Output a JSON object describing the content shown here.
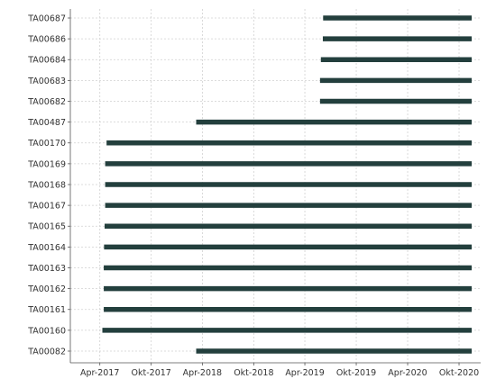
{
  "chart_data": {
    "type": "gantt",
    "title": "",
    "xlabel": "",
    "ylabel": "",
    "x_axis_type": "date",
    "xlim": [
      "2016-12-17",
      "2020-12-17"
    ],
    "x_ticks": [
      {
        "date": "2017-04-01",
        "label": "Apr-2017"
      },
      {
        "date": "2017-10-01",
        "label": "Okt-2017"
      },
      {
        "date": "2018-04-01",
        "label": "Apr-2018"
      },
      {
        "date": "2018-10-01",
        "label": "Okt-2018"
      },
      {
        "date": "2019-04-01",
        "label": "Apr-2019"
      },
      {
        "date": "2019-10-01",
        "label": "Okt-2019"
      },
      {
        "date": "2020-04-01",
        "label": "Apr-2020"
      },
      {
        "date": "2020-10-01",
        "label": "Okt-2020"
      }
    ],
    "grid": true,
    "bar_color": "#233f3d",
    "rows": [
      {
        "label": "TA00687",
        "start": "2019-06-05",
        "end": "2020-11-15"
      },
      {
        "label": "TA00686",
        "start": "2019-06-04",
        "end": "2020-11-15"
      },
      {
        "label": "TA00684",
        "start": "2019-05-28",
        "end": "2020-11-15"
      },
      {
        "label": "TA00683",
        "start": "2019-05-25",
        "end": "2020-11-15"
      },
      {
        "label": "TA00682",
        "start": "2019-05-25",
        "end": "2020-11-15"
      },
      {
        "label": "TA00487",
        "start": "2018-03-10",
        "end": "2020-11-15"
      },
      {
        "label": "TA00170",
        "start": "2017-04-25",
        "end": "2020-11-15"
      },
      {
        "label": "TA00169",
        "start": "2017-04-20",
        "end": "2020-11-15"
      },
      {
        "label": "TA00168",
        "start": "2017-04-20",
        "end": "2020-11-15"
      },
      {
        "label": "TA00167",
        "start": "2017-04-20",
        "end": "2020-11-15"
      },
      {
        "label": "TA00165",
        "start": "2017-04-18",
        "end": "2020-11-15"
      },
      {
        "label": "TA00164",
        "start": "2017-04-16",
        "end": "2020-11-15"
      },
      {
        "label": "TA00163",
        "start": "2017-04-15",
        "end": "2020-11-15"
      },
      {
        "label": "TA00162",
        "start": "2017-04-15",
        "end": "2020-11-15"
      },
      {
        "label": "TA00161",
        "start": "2017-04-15",
        "end": "2020-11-15"
      },
      {
        "label": "TA00160",
        "start": "2017-04-10",
        "end": "2020-11-15"
      },
      {
        "label": "TA00082",
        "start": "2018-03-10",
        "end": "2020-11-15"
      }
    ]
  }
}
